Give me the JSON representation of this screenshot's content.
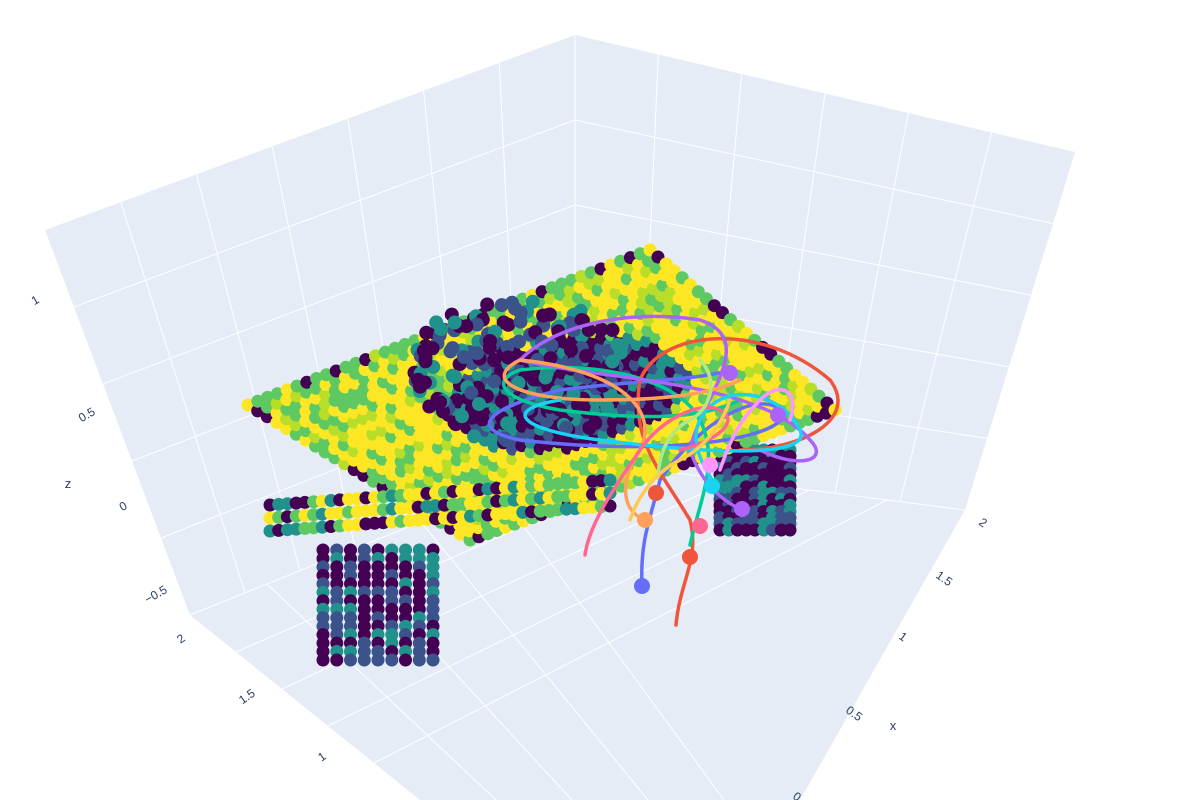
{
  "chart_data": {
    "type": "scatter3d",
    "scene": {
      "axes": {
        "x": {
          "title": "x",
          "range": [
            0,
            2
          ],
          "ticks": [
            "0",
            "0.5",
            "1",
            "1.5",
            "2"
          ]
        },
        "y": {
          "title": "",
          "range": [
            0.5,
            2
          ],
          "ticks": [
            "1",
            "1.5",
            "2"
          ]
        },
        "z": {
          "title": "z",
          "range": [
            -0.9,
            1.1
          ],
          "ticks": [
            "−0.5",
            "0",
            "0.5",
            "1"
          ]
        }
      },
      "background": "#e5ecf6",
      "grid_color": "#ffffff"
    },
    "surface_trace": {
      "name": "",
      "description_colors": [
        "#440154",
        "#3b528b",
        "#21918c",
        "#5ec962",
        "#b8de29",
        "#fde725"
      ],
      "colorscale": "Viridis"
    },
    "trajectories": [
      {
        "color": "#636efa"
      },
      {
        "color": "#ef553b"
      },
      {
        "color": "#00cc96"
      },
      {
        "color": "#ab63fa"
      },
      {
        "color": "#ffa15a"
      },
      {
        "color": "#19d3f3"
      },
      {
        "color": "#ff6692"
      },
      {
        "color": "#b6e880"
      },
      {
        "color": "#ff97ff"
      },
      {
        "color": "#fecb52"
      }
    ]
  }
}
